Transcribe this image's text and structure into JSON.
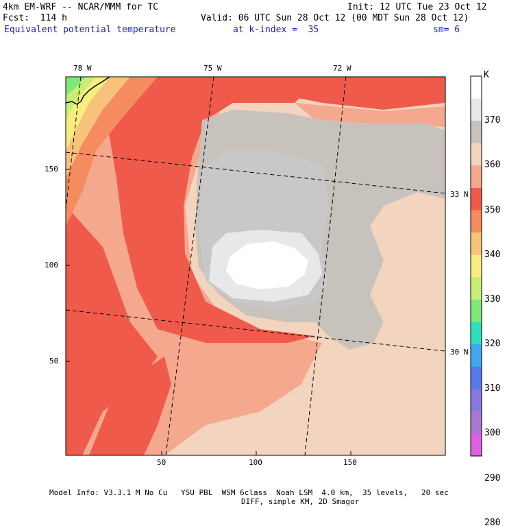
{
  "header": {
    "line1_left": "4km EM-WRF -- NCAR/MMM for TC",
    "line1_right": "Init: 12 UTC Tue 23 Oct 12",
    "line2_left": "Fcst:  114 h",
    "line2_right": "Valid: 06 UTC Sun 28 Oct 12 (00 MDT Sun 28 Oct 12)",
    "field_name": "Equivalent potential temperature",
    "level": "at k-index =  35",
    "smoothing": "sm= 6"
  },
  "map": {
    "top_lon_labels": [
      "78 W",
      "75 W",
      "72 W"
    ],
    "right_lat_labels": [
      "33 N",
      "30 N"
    ],
    "y_axis_ticks": [
      "150",
      "100",
      "50"
    ],
    "x_axis_ticks": [
      "50",
      "100",
      "150"
    ],
    "grid_extent": {
      "x": [
        0,
        198
      ],
      "y": [
        0,
        198
      ]
    }
  },
  "colorbar": {
    "unit": "K",
    "levels": [
      "370",
      "360",
      "350",
      "340",
      "330",
      "320",
      "310",
      "300",
      "290",
      "280"
    ],
    "colors": [
      "#ffffff",
      "#e8e8e8",
      "#c8c2bc",
      "#f2d4bf",
      "#f4a88e",
      "#f05a4a",
      "#f48c60",
      "#f7c27a",
      "#f7ee80",
      "#c9ee78",
      "#7ee878",
      "#2ee0c0",
      "#40a8ee",
      "#5a78ee",
      "#8878e0",
      "#a878d0",
      "#e060e0"
    ]
  },
  "footer": {
    "line1": "Model Info: V3.3.1 M No Cu   YSU PBL  WSM 6class  Noah LSM  4.0 km,  35 levels,   20 sec",
    "line2": "DIFF, simple KM, 2D Smagor"
  }
}
